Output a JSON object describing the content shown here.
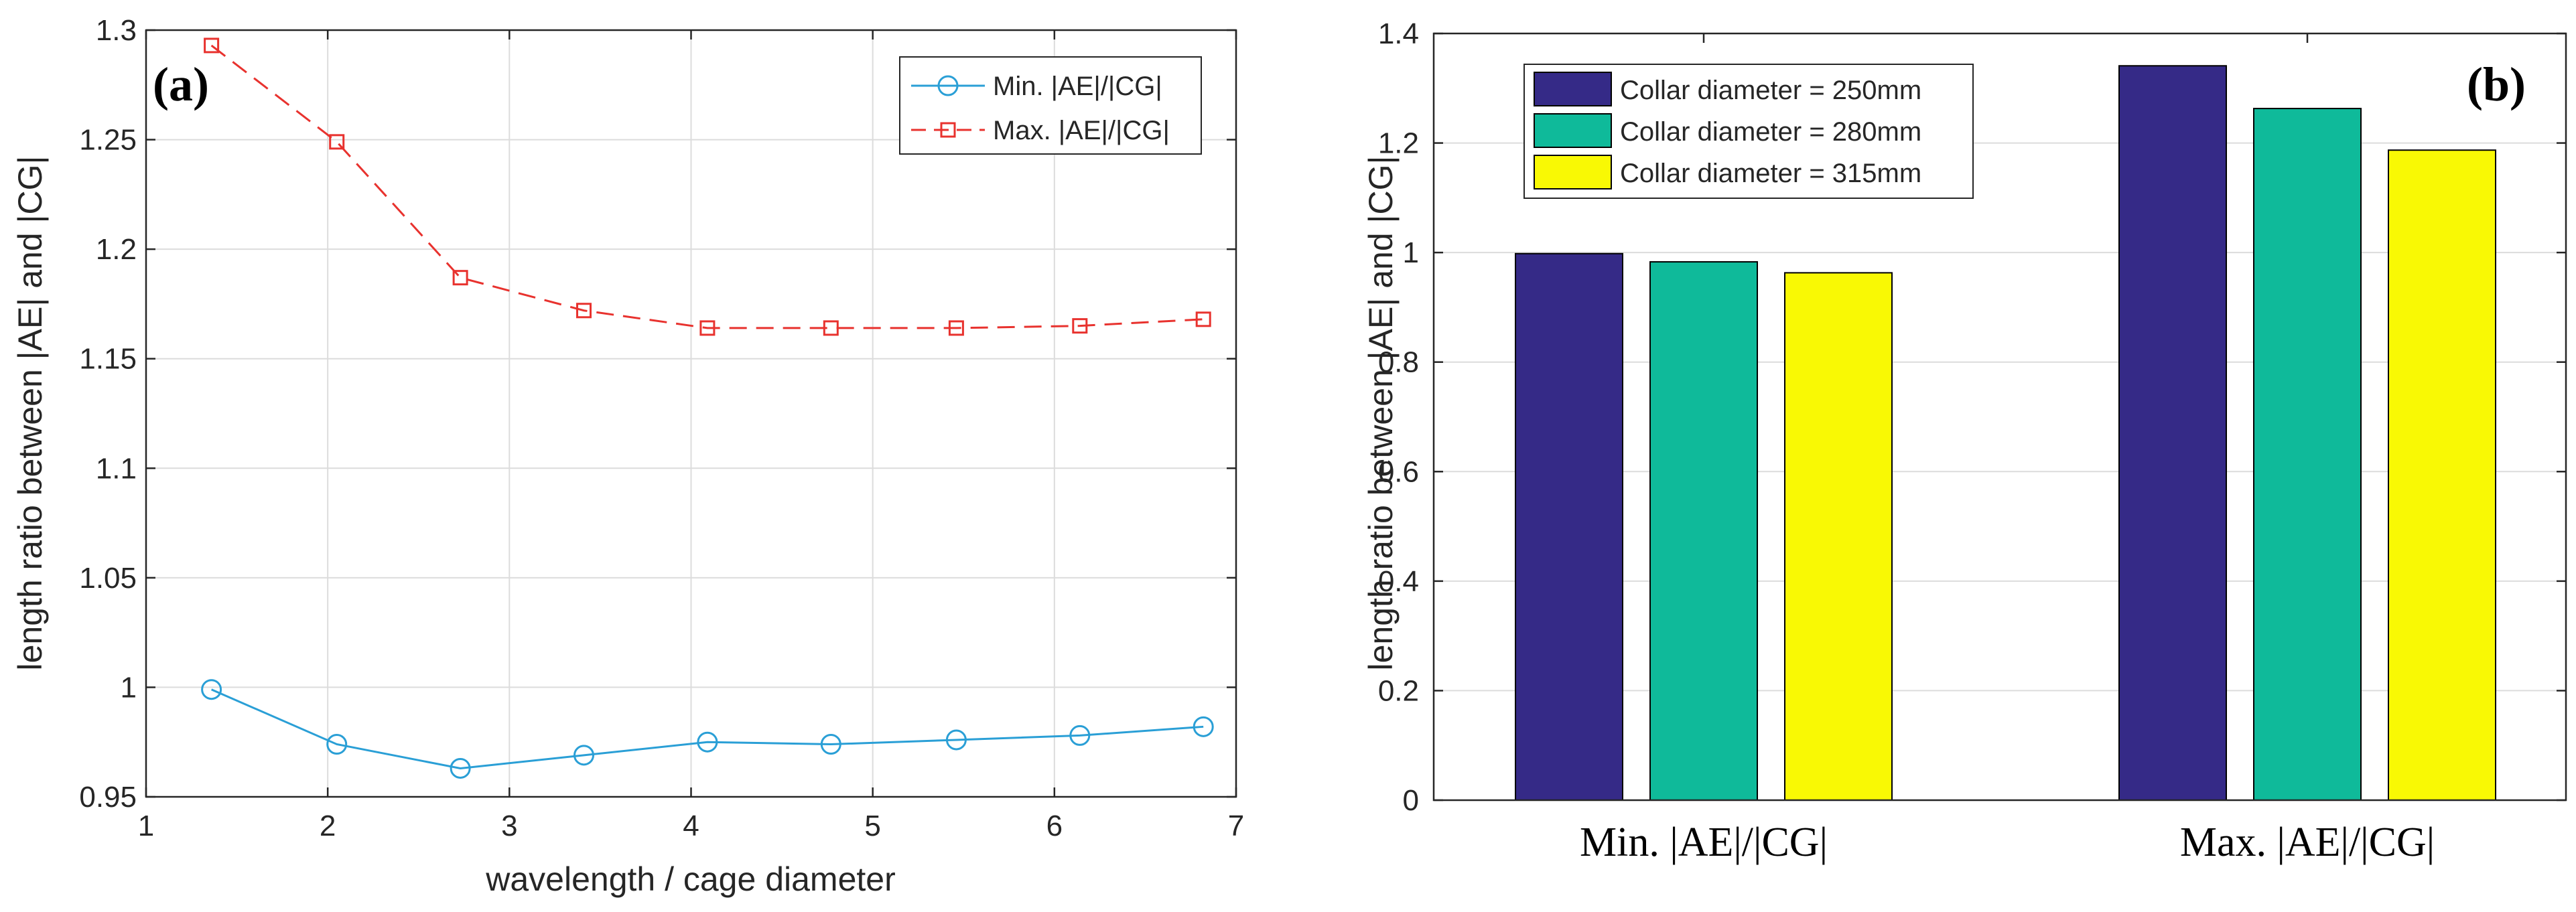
{
  "chart_data": [
    {
      "type": "line",
      "panel_label": "(a)",
      "xlabel": "wavelength / cage diameter",
      "ylabel": "length ratio between |AE| and |CG|",
      "xlim": [
        1,
        7
      ],
      "ylim": [
        0.95,
        1.3
      ],
      "xticks": [
        "1",
        "2",
        "3",
        "4",
        "5",
        "6",
        "7"
      ],
      "yticks": [
        "0.95",
        "1",
        "1.05",
        "1.1",
        "1.15",
        "1.2",
        "1.25",
        "1.3"
      ],
      "grid": true,
      "legend_position": "top-right",
      "x": [
        1.36,
        2.05,
        2.73,
        3.41,
        4.09,
        4.77,
        5.46,
        6.14,
        6.82
      ],
      "series": [
        {
          "name": "Min. |AE|/|CG|",
          "color": "#2a9fd6",
          "marker": "circle",
          "line_style": "solid",
          "values": [
            0.999,
            0.974,
            0.963,
            0.969,
            0.975,
            0.974,
            0.976,
            0.978,
            0.982
          ]
        },
        {
          "name": "Max. |AE|/|CG|",
          "color": "#e8322e",
          "marker": "square",
          "line_style": "dashed",
          "values": [
            1.293,
            1.249,
            1.187,
            1.172,
            1.164,
            1.164,
            1.164,
            1.165,
            1.168
          ]
        }
      ]
    },
    {
      "type": "bar",
      "panel_label": "(b)",
      "xlabel": "",
      "ylabel": "length ratio between |AE| and |CG|",
      "ylim": [
        0,
        1.4
      ],
      "yticks": [
        "0",
        "0.2",
        "0.4",
        "0.6",
        "0.8",
        "1",
        "1.2",
        "1.4"
      ],
      "grid": true,
      "legend_position": "top-left",
      "categories": [
        "Min. |AE|/|CG|",
        "Max. |AE|/|CG|"
      ],
      "series": [
        {
          "name": "Collar diameter = 250mm",
          "color": "#352a87",
          "values": [
            0.998,
            1.341
          ]
        },
        {
          "name": "Collar diameter = 280mm",
          "color": "#0fba9a",
          "values": [
            0.983,
            1.263
          ]
        },
        {
          "name": "Collar diameter = 315mm",
          "color": "#f9f904",
          "values": [
            0.963,
            1.187
          ]
        }
      ]
    }
  ]
}
